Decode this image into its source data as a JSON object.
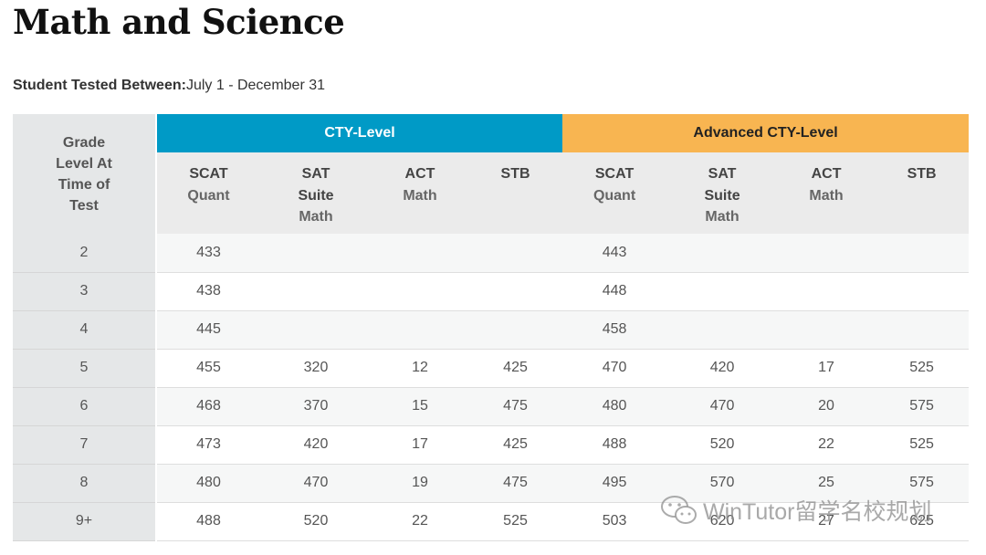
{
  "title": "Math and Science",
  "tested": {
    "label": "Student Tested Between:",
    "value": "July 1 - December 31"
  },
  "table": {
    "grade_header": [
      "Grade",
      "Level At",
      "Time of",
      "Test"
    ],
    "groups": [
      "CTY-Level",
      "Advanced CTY-Level"
    ],
    "subheaders": [
      {
        "top": "SCAT",
        "bold": "",
        "bottom": "Quant"
      },
      {
        "top": "SAT",
        "bold": "Suite",
        "bottom": "Math"
      },
      {
        "top": "ACT",
        "bold": "",
        "bottom": "Math"
      },
      {
        "top": "STB",
        "bold": "",
        "bottom": ""
      },
      {
        "top": "SCAT",
        "bold": "",
        "bottom": "Quant"
      },
      {
        "top": "SAT",
        "bold": "Suite",
        "bottom": "Math"
      },
      {
        "top": "ACT",
        "bold": "",
        "bottom": "Math"
      },
      {
        "top": "STB",
        "bold": "",
        "bottom": ""
      }
    ],
    "rows": [
      {
        "grade": "2",
        "values": [
          "433",
          "",
          "",
          "",
          "443",
          "",
          "",
          ""
        ]
      },
      {
        "grade": "3",
        "values": [
          "438",
          "",
          "",
          "",
          "448",
          "",
          "",
          ""
        ]
      },
      {
        "grade": "4",
        "values": [
          "445",
          "",
          "",
          "",
          "458",
          "",
          "",
          ""
        ]
      },
      {
        "grade": "5",
        "values": [
          "455",
          "320",
          "12",
          "425",
          "470",
          "420",
          "17",
          "525"
        ]
      },
      {
        "grade": "6",
        "values": [
          "468",
          "370",
          "15",
          "475",
          "480",
          "470",
          "20",
          "575"
        ]
      },
      {
        "grade": "7",
        "values": [
          "473",
          "420",
          "17",
          "425",
          "488",
          "520",
          "22",
          "525"
        ]
      },
      {
        "grade": "8",
        "values": [
          "480",
          "470",
          "19",
          "475",
          "495",
          "570",
          "25",
          "575"
        ]
      },
      {
        "grade": "9+",
        "values": [
          "488",
          "520",
          "22",
          "525",
          "503",
          "620",
          "27",
          "625"
        ]
      }
    ]
  },
  "watermark": {
    "text": "WinTutor留学名校规划",
    "icon": "wechat-icon"
  },
  "colors": {
    "cty": "#009ac6",
    "advanced": "#f8b551"
  }
}
